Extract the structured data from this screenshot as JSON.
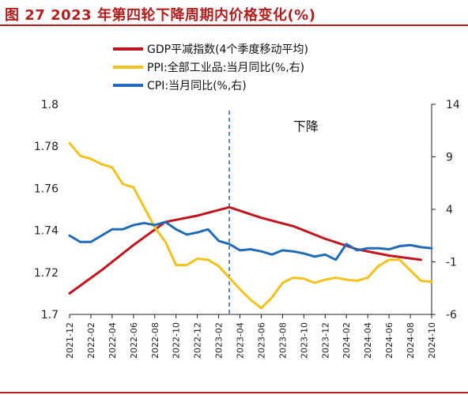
{
  "figure": {
    "title": "图 27  2023 年第四轮下降周期内价格变化(%)"
  },
  "chart_data": {
    "type": "line",
    "title": "图 27  2023 年第四轮下降周期内价格变化(%)",
    "x": [
      "2021-12",
      "2022-01",
      "2022-02",
      "2022-03",
      "2022-04",
      "2022-05",
      "2022-06",
      "2022-07",
      "2022-08",
      "2022-09",
      "2022-10",
      "2022-11",
      "2022-12",
      "2023-01",
      "2023-02",
      "2023-03",
      "2023-04",
      "2023-05",
      "2023-06",
      "2023-07",
      "2023-08",
      "2023-09",
      "2023-10",
      "2023-11",
      "2023-12",
      "2024-01",
      "2024-02",
      "2024-03",
      "2024-04",
      "2024-05",
      "2024-06",
      "2024-07",
      "2024-08",
      "2024-09",
      "2024-10"
    ],
    "x_tick_labels": [
      "2021-12",
      "2022-02",
      "2022-04",
      "2022-06",
      "2022-08",
      "2022-10",
      "2022-12",
      "2023-02",
      "2023-04",
      "2023-06",
      "2023-08",
      "2023-10",
      "2023-12",
      "2024-02",
      "2024-04",
      "2024-06",
      "2024-08",
      "2024-10"
    ],
    "left_axis": {
      "range": [
        1.7,
        1.8
      ],
      "ticks": [
        "1.7",
        "1.72",
        "1.74",
        "1.76",
        "1.78",
        "1.8"
      ]
    },
    "right_axis": {
      "range": [
        -6,
        14
      ],
      "ticks": [
        "-6",
        "-1",
        "4",
        "9",
        "14"
      ]
    },
    "series": [
      {
        "name": "GDP平减指数(4个季度移动平均)",
        "axis": "left",
        "color": "#c0141e",
        "points": [
          [
            "2021-12",
            1.71
          ],
          [
            "2022-03",
            1.721
          ],
          [
            "2022-06",
            1.733
          ],
          [
            "2022-09",
            1.744
          ],
          [
            "2022-12",
            1.747
          ],
          [
            "2023-03",
            1.751
          ],
          [
            "2023-06",
            1.746
          ],
          [
            "2023-09",
            1.742
          ],
          [
            "2023-12",
            1.736
          ],
          [
            "2024-03",
            1.731
          ],
          [
            "2024-06",
            1.728
          ],
          [
            "2024-09",
            1.726
          ]
        ]
      },
      {
        "name": "PPI:全部工业品:当月同比(%,右)",
        "axis": "right",
        "color": "#f2c21a",
        "points": [
          [
            "2021-12",
            10.3
          ],
          [
            "2022-01",
            9.1
          ],
          [
            "2022-02",
            8.8
          ],
          [
            "2022-03",
            8.3
          ],
          [
            "2022-04",
            8.0
          ],
          [
            "2022-05",
            6.4
          ],
          [
            "2022-06",
            6.1
          ],
          [
            "2022-07",
            4.2
          ],
          [
            "2022-08",
            2.3
          ],
          [
            "2022-09",
            0.9
          ],
          [
            "2022-10",
            -1.3
          ],
          [
            "2022-11",
            -1.3
          ],
          [
            "2022-12",
            -0.7
          ],
          [
            "2023-01",
            -0.8
          ],
          [
            "2023-02",
            -1.4
          ],
          [
            "2023-03",
            -2.5
          ],
          [
            "2023-04",
            -3.6
          ],
          [
            "2023-05",
            -4.6
          ],
          [
            "2023-06",
            -5.4
          ],
          [
            "2023-07",
            -4.4
          ],
          [
            "2023-08",
            -3.0
          ],
          [
            "2023-09",
            -2.5
          ],
          [
            "2023-10",
            -2.6
          ],
          [
            "2023-11",
            -3.0
          ],
          [
            "2023-12",
            -2.7
          ],
          [
            "2024-01",
            -2.5
          ],
          [
            "2024-02",
            -2.7
          ],
          [
            "2024-03",
            -2.8
          ],
          [
            "2024-04",
            -2.5
          ],
          [
            "2024-05",
            -1.4
          ],
          [
            "2024-06",
            -0.8
          ],
          [
            "2024-07",
            -0.8
          ],
          [
            "2024-08",
            -1.8
          ],
          [
            "2024-09",
            -2.8
          ],
          [
            "2024-10",
            -2.9
          ]
        ]
      },
      {
        "name": "CPI:当月同比(%,右)",
        "axis": "right",
        "color": "#1f6bb5",
        "points": [
          [
            "2021-12",
            1.5
          ],
          [
            "2022-01",
            0.9
          ],
          [
            "2022-02",
            0.9
          ],
          [
            "2022-03",
            1.5
          ],
          [
            "2022-04",
            2.1
          ],
          [
            "2022-05",
            2.1
          ],
          [
            "2022-06",
            2.5
          ],
          [
            "2022-07",
            2.7
          ],
          [
            "2022-08",
            2.5
          ],
          [
            "2022-09",
            2.8
          ],
          [
            "2022-10",
            2.1
          ],
          [
            "2022-11",
            1.6
          ],
          [
            "2022-12",
            1.8
          ],
          [
            "2023-01",
            2.1
          ],
          [
            "2023-02",
            1.0
          ],
          [
            "2023-03",
            0.7
          ],
          [
            "2023-04",
            0.1
          ],
          [
            "2023-05",
            0.2
          ],
          [
            "2023-06",
            0.0
          ],
          [
            "2023-07",
            -0.3
          ],
          [
            "2023-08",
            0.1
          ],
          [
            "2023-09",
            0.0
          ],
          [
            "2023-10",
            -0.2
          ],
          [
            "2023-11",
            -0.5
          ],
          [
            "2023-12",
            -0.3
          ],
          [
            "2024-01",
            -0.8
          ],
          [
            "2024-02",
            0.7
          ],
          [
            "2024-03",
            0.1
          ],
          [
            "2024-04",
            0.3
          ],
          [
            "2024-05",
            0.3
          ],
          [
            "2024-06",
            0.2
          ],
          [
            "2024-07",
            0.5
          ],
          [
            "2024-08",
            0.6
          ],
          [
            "2024-09",
            0.4
          ],
          [
            "2024-10",
            0.3
          ]
        ]
      }
    ],
    "reference_line": {
      "x": "2023-03",
      "style": "dashed",
      "color": "#2566a8"
    },
    "annotations": [
      {
        "text": "下降",
        "x": "2023-09",
        "y_right": 11.5
      }
    ],
    "legend": {
      "placement": "top-center"
    },
    "grid": false
  }
}
